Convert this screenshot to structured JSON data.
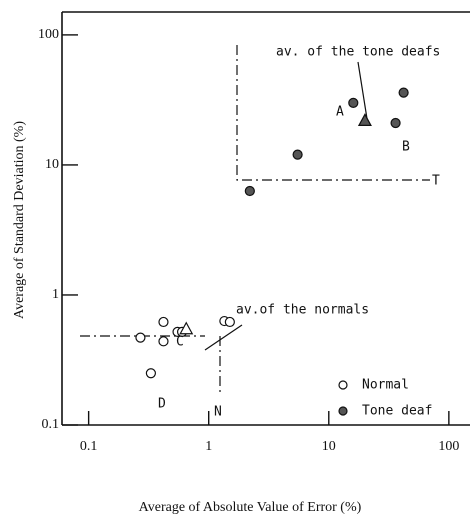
{
  "chart_data": {
    "type": "scatter",
    "xlabel": "Average of Absolute Value of Error (%)",
    "ylabel": "Average of Standard Deviation (%)",
    "xlim": [
      0.06,
      150
    ],
    "ylim": [
      0.1,
      150
    ],
    "xticks": [
      0.1,
      1,
      10,
      100
    ],
    "yticks": [
      0.1,
      1,
      10,
      100
    ],
    "log_x": true,
    "log_y": true,
    "legend": "lower right",
    "series": [
      {
        "name": "Normal",
        "color": "#ffffff",
        "marker": "open-circle",
        "x": [
          0.27,
          0.42,
          0.42,
          0.55,
          0.6,
          1.35,
          1.5,
          0.33
        ],
        "values": [
          0.47,
          0.62,
          0.44,
          0.52,
          0.52,
          0.63,
          0.62,
          0.25
        ]
      },
      {
        "name": "Tone deaf",
        "color": "#555555",
        "marker": "filled-circle",
        "x": [
          2.2,
          5.5,
          16,
          36,
          42
        ],
        "values": [
          6.3,
          12,
          30,
          21,
          36
        ]
      }
    ],
    "averages": [
      {
        "label": "av.of the normals",
        "x": 0.65,
        "value": 0.55,
        "color": "#ffffff"
      },
      {
        "label": "av. of the tone deafs",
        "x": 20,
        "value": 22,
        "color": "#555555"
      }
    ],
    "annotations": [
      "A",
      "B",
      "T",
      "C",
      "D",
      "N"
    ]
  }
}
